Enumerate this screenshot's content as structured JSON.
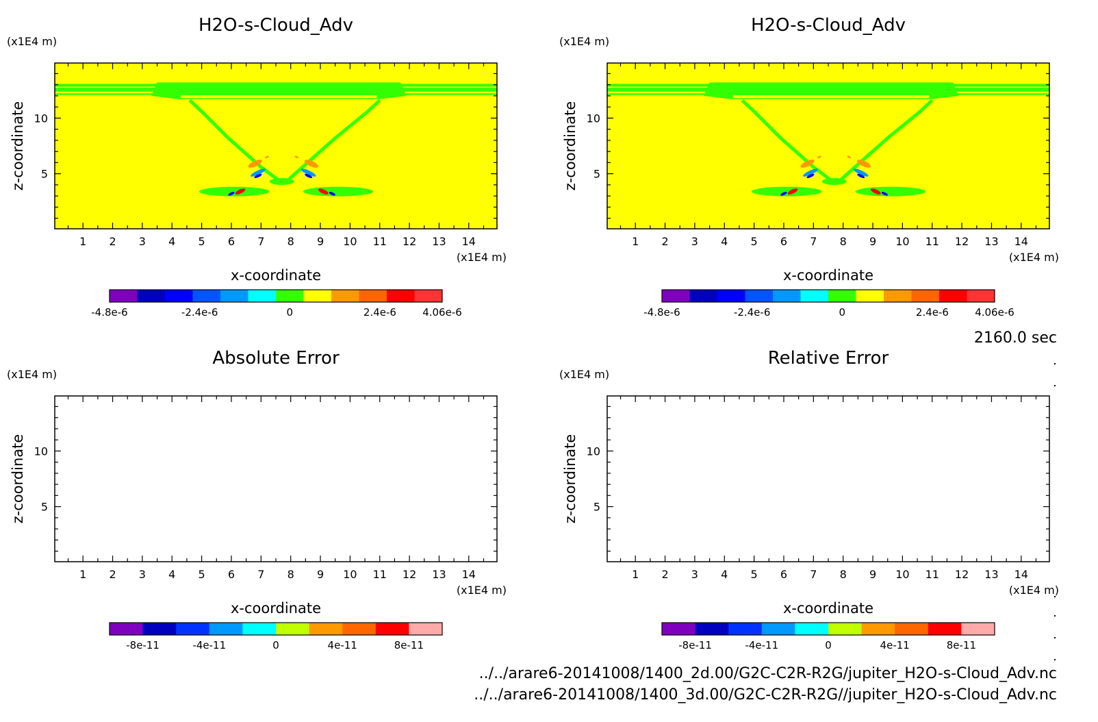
{
  "time_label": "2160.0 sec",
  "file_paths": [
    "../../arare6-20141008/1400_2d.00/G2C-C2R-R2G/jupiter_H2O-s-Cloud_Adv.nc",
    "../../arare6-20141008/1400_3d.00/G2C-C2R-R2G//jupiter_H2O-s-Cloud_Adv.nc"
  ],
  "colors": {
    "field_background": "#ffff00",
    "cloud_green": "#33ff00",
    "frame": "#000000"
  },
  "chart_data": [
    {
      "type": "heatmap",
      "title": "H2O-s-Cloud_Adv",
      "xlabel": "x-coordinate",
      "ylabel": "z-coordinate",
      "x_unit": "(x1E4 m)",
      "y_unit": "(x1E4 m)",
      "xlim": [
        0.05,
        14.95
      ],
      "ylim": [
        0.05,
        14.95
      ],
      "xticks": [
        "1",
        "2",
        "3",
        "4",
        "5",
        "6",
        "7",
        "8",
        "9",
        "10",
        "11",
        "12",
        "13",
        "14"
      ],
      "yticks": [
        "5",
        "10"
      ],
      "colorbar": {
        "colors": [
          "#7f00bf",
          "#0000bf",
          "#0000ff",
          "#0055ff",
          "#0099ff",
          "#00ffff",
          "#33ff00",
          "#ffff00",
          "#ff9900",
          "#ff6600",
          "#ff0000",
          "#ff3333"
        ],
        "tick_labels": [
          "-4.8e-6",
          "-2.4e-6",
          "0",
          "2.4e-6",
          "4.06e-6"
        ],
        "range": [
          -4.8e-06,
          4.06e-06
        ]
      }
    },
    {
      "type": "heatmap",
      "title": "H2O-s-Cloud_Adv",
      "xlabel": "x-coordinate",
      "ylabel": "z-coordinate",
      "x_unit": "(x1E4 m)",
      "y_unit": "(x1E4 m)",
      "xlim": [
        0.05,
        14.95
      ],
      "ylim": [
        0.05,
        14.95
      ],
      "xticks": [
        "1",
        "2",
        "3",
        "4",
        "5",
        "6",
        "7",
        "8",
        "9",
        "10",
        "11",
        "12",
        "13",
        "14"
      ],
      "yticks": [
        "5",
        "10"
      ],
      "colorbar": {
        "colors": [
          "#7f00bf",
          "#0000bf",
          "#0000ff",
          "#0055ff",
          "#0099ff",
          "#00ffff",
          "#33ff00",
          "#ffff00",
          "#ff9900",
          "#ff6600",
          "#ff0000",
          "#ff3333"
        ],
        "tick_labels": [
          "-4.8e-6",
          "-2.4e-6",
          "0",
          "2.4e-6",
          "4.06e-6"
        ],
        "range": [
          -4.8e-06,
          4.06e-06
        ]
      }
    },
    {
      "type": "heatmap",
      "title": "Absolute Error",
      "xlabel": "x-coordinate",
      "ylabel": "z-coordinate",
      "x_unit": "(x1E4 m)",
      "y_unit": "(x1E4 m)",
      "xlim": [
        0.05,
        14.95
      ],
      "ylim": [
        0.05,
        14.95
      ],
      "xticks": [
        "1",
        "2",
        "3",
        "4",
        "5",
        "6",
        "7",
        "8",
        "9",
        "10",
        "11",
        "12",
        "13",
        "14"
      ],
      "yticks": [
        "5",
        "10"
      ],
      "colorbar": {
        "colors": [
          "#7f00bf",
          "#0000bf",
          "#0033ff",
          "#0099ff",
          "#00ffff",
          "#bfff00",
          "#ff9900",
          "#ff6600",
          "#ff0000",
          "#ffaaaa"
        ],
        "tick_labels": [
          "-8e-11",
          "-4e-11",
          "0",
          "4e-11",
          "8e-11"
        ],
        "range": [
          -1e-10,
          1e-10
        ]
      }
    },
    {
      "type": "heatmap",
      "title": "Relative Error",
      "xlabel": "x-coordinate",
      "ylabel": "z-coordinate",
      "x_unit": "(x1E4 m)",
      "y_unit": "(x1E4 m)",
      "xlim": [
        0.05,
        14.95
      ],
      "ylim": [
        0.05,
        14.95
      ],
      "xticks": [
        "1",
        "2",
        "3",
        "4",
        "5",
        "6",
        "7",
        "8",
        "9",
        "10",
        "11",
        "12",
        "13",
        "14"
      ],
      "yticks": [
        "5",
        "10"
      ],
      "colorbar": {
        "colors": [
          "#7f00bf",
          "#0000bf",
          "#0033ff",
          "#0099ff",
          "#00ffff",
          "#bfff00",
          "#ff9900",
          "#ff6600",
          "#ff0000",
          "#ffaaaa"
        ],
        "tick_labels": [
          "-8e-11",
          "-4e-11",
          "0",
          "4e-11",
          "8e-11"
        ],
        "range": [
          -1e-10,
          1e-10
        ]
      }
    }
  ]
}
